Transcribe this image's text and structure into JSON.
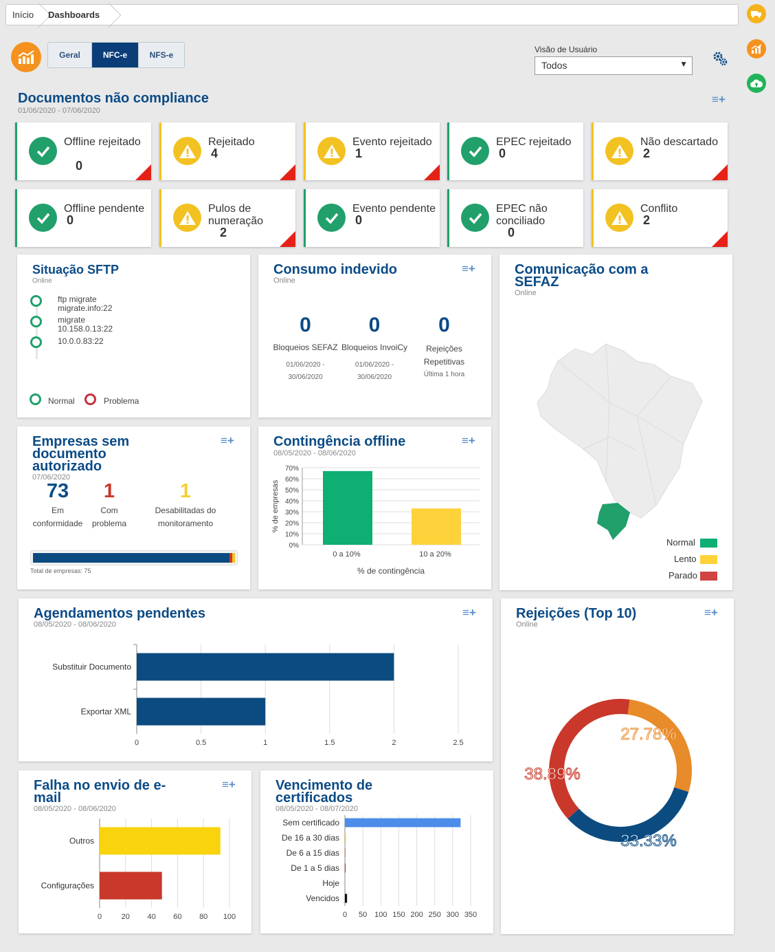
{
  "breadcrumb": {
    "home": "Início",
    "current": "Dashboards"
  },
  "tabs": [
    "Geral",
    "NFC-e",
    "NFS-e"
  ],
  "user_view": {
    "label": "Visão de Usuário",
    "value": "Todos"
  },
  "docs": {
    "title": "Documentos não compliance",
    "date": "01/06/2020 - 07/06/2020",
    "kpis": [
      {
        "label": "Offline rejeitado",
        "value": "0",
        "status": "ok"
      },
      {
        "label": "Rejeitado",
        "value": "4",
        "status": "warn"
      },
      {
        "label": "Evento rejeitado",
        "value": "1",
        "status": "warn"
      },
      {
        "label": "EPEC rejeitado",
        "value": "0",
        "status": "ok"
      },
      {
        "label": "Não descartado",
        "value": "2",
        "status": "warn"
      },
      {
        "label": "Offline pendente",
        "value": "0",
        "status": "ok"
      },
      {
        "label": "Pulos de numeração",
        "value": "2",
        "status": "warn"
      },
      {
        "label": "Evento pendente",
        "value": "0",
        "status": "ok"
      },
      {
        "label": "EPEC não conciliado",
        "value": "0",
        "status": "ok"
      },
      {
        "label": "Conflito",
        "value": "2",
        "status": "warn"
      }
    ]
  },
  "sftp": {
    "title": "Situação SFTP",
    "status": "Online",
    "items": [
      {
        "l1": "ftp migrate",
        "l2": "migrate.info:22"
      },
      {
        "l1": "migrate",
        "l2": "10.158.0.13:22"
      },
      {
        "l1": "10.0.0.83:22",
        "l2": ""
      }
    ],
    "legend_normal": "Normal",
    "legend_problem": "Problema"
  },
  "consumo": {
    "title": "Consumo indevido",
    "status": "Online",
    "cols": [
      {
        "value": "0",
        "label": "Bloqueios SEFAZ",
        "date1": "01/06/2020 -",
        "date2": "30/06/2020"
      },
      {
        "value": "0",
        "label": "Bloqueios InvoiCy",
        "date1": "01/06/2020 -",
        "date2": "30/06/2020"
      },
      {
        "value": "0",
        "label": "Rejeições",
        "label2": "Repetitivas",
        "date1": "Última 1 hora",
        "date2": ""
      }
    ]
  },
  "sefaz": {
    "title1": "Comunicação com a",
    "title2": "SEFAZ",
    "status": "Online",
    "legend": [
      "Normal",
      "Lento",
      "Parado"
    ]
  },
  "empresas": {
    "title1": "Empresas sem",
    "title2": "documento",
    "title3": "autorizado",
    "date": "07/06/2020",
    "stats": [
      {
        "value": "73",
        "l1": "Em",
        "l2": "conformidade"
      },
      {
        "value": "1",
        "l1": "Com",
        "l2": "problema"
      },
      {
        "value": "1",
        "l1": "Desabilitadas do",
        "l2": "monitoramento"
      }
    ],
    "total": "Total de empresas: 75",
    "progress": {
      "ok": 73,
      "problem": 1,
      "disabled": 1,
      "total": 75
    }
  },
  "contingencia": {
    "title": "Contingência offline",
    "date": "08/05/2020 - 08/06/2020"
  },
  "agendamentos": {
    "title": "Agendamentos pendentes",
    "date": "08/05/2020 - 08/06/2020"
  },
  "rejeicoes": {
    "title": "Rejeições (Top 10)",
    "status": "Online"
  },
  "falha": {
    "title1": "Falha no envio de e-",
    "title2": "mail",
    "date": "08/05/2020 - 08/06/2020"
  },
  "vencimento": {
    "title1": "Vencimento de",
    "title2": "certificados",
    "date": "08/05/2020 - 08/07/2020"
  },
  "chart_data": [
    {
      "id": "contingencia",
      "type": "bar",
      "categories": [
        "0 a 10%",
        "10 a 20%"
      ],
      "values": [
        67,
        33
      ],
      "colors": [
        "#0fae73",
        "#fdd23b"
      ],
      "xlabel": "% de contingência",
      "ylabel": "% de empresas",
      "ylim": [
        0,
        70
      ],
      "yticks": [
        "0%",
        "10%",
        "20%",
        "30%",
        "40%",
        "50%",
        "60%",
        "70%"
      ]
    },
    {
      "id": "agendamentos",
      "type": "bar",
      "orientation": "horizontal",
      "categories": [
        "Substituir Documento",
        "Exportar XML"
      ],
      "values": [
        2,
        1
      ],
      "xlim": [
        0,
        2.5
      ],
      "xticks": [
        "0",
        "0.5",
        "1",
        "1.5",
        "2",
        "2.5"
      ],
      "color": "#0b4b80"
    },
    {
      "id": "rejeicoes",
      "type": "pie",
      "labels": [
        "27.78%",
        "33.33%",
        "38.89%"
      ],
      "values": [
        27.78,
        33.33,
        38.89
      ],
      "colors": [
        "#e88b2a",
        "#0b4b80",
        "#c9382b"
      ]
    },
    {
      "id": "falha",
      "type": "bar",
      "orientation": "horizontal",
      "categories": [
        "Outros",
        "Configurações"
      ],
      "values": [
        93,
        48
      ],
      "colors": [
        "#f9d40e",
        "#c9382b"
      ],
      "xlim": [
        0,
        100
      ],
      "xticks": [
        "0",
        "20",
        "40",
        "60",
        "80",
        "100"
      ]
    },
    {
      "id": "vencimento",
      "type": "bar",
      "orientation": "horizontal",
      "categories": [
        "Sem certificado",
        "De 16 a 30 dias",
        "De 6 a 15 dias",
        "De 1 a 5 dias",
        "Hoje",
        "Vencidos"
      ],
      "values": [
        322,
        3,
        2,
        2,
        0,
        6
      ],
      "colors": [
        "#4d8ce8",
        "#f9d40e",
        "#e88b2a",
        "#c9382b",
        "#333",
        "#111"
      ],
      "xlim": [
        0,
        350
      ],
      "xticks": [
        "0",
        "50",
        "100",
        "150",
        "200",
        "250",
        "300",
        "350"
      ]
    }
  ],
  "colors": {
    "brand_orange": "#f5921e",
    "navy": "#0b4b86",
    "green": "#21a06b",
    "yellow": "#f2c222",
    "red": "#e62117"
  }
}
